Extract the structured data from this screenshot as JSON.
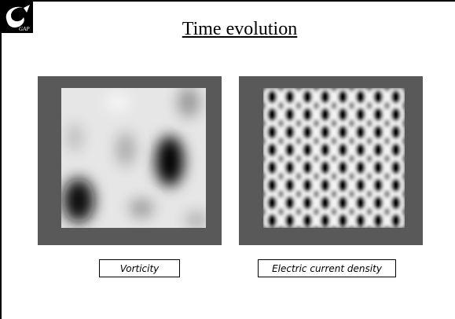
{
  "header": {
    "title": "Time evolution",
    "logo_text": "GAP"
  },
  "panels": [
    {
      "caption": "Vorticity"
    },
    {
      "caption": "Electric current density"
    }
  ]
}
